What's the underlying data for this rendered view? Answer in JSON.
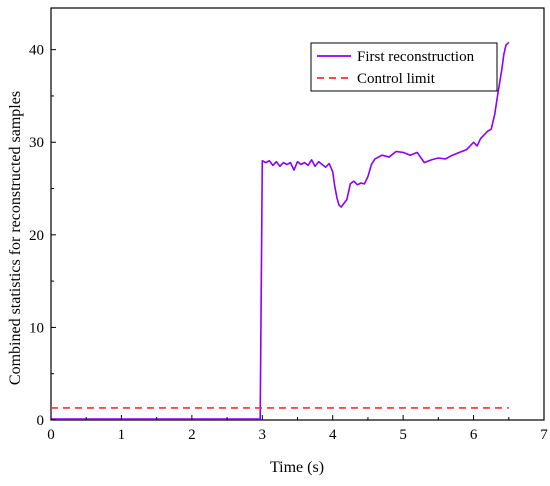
{
  "chart_data": {
    "type": "line",
    "title": "",
    "xlabel": "Time (s)",
    "ylabel": "Combined statistics for reconstructed samples",
    "xlim": [
      0,
      7
    ],
    "ylim": [
      0,
      44.5
    ],
    "xticks": [
      0,
      1,
      2,
      3,
      4,
      5,
      6,
      7
    ],
    "yticks": [
      0,
      10,
      20,
      30,
      40
    ],
    "grid": false,
    "legend_position": "top-right",
    "series": [
      {
        "name": "First reconstruction",
        "color": "#8B00FF",
        "style": "solid",
        "x": [
          0,
          0.5,
          1.0,
          1.5,
          2.0,
          2.5,
          2.95,
          2.97,
          3.0,
          3.05,
          3.1,
          3.15,
          3.2,
          3.25,
          3.3,
          3.35,
          3.4,
          3.45,
          3.5,
          3.55,
          3.6,
          3.65,
          3.7,
          3.75,
          3.8,
          3.85,
          3.9,
          3.95,
          4.0,
          4.03,
          4.06,
          4.09,
          4.12,
          4.15,
          4.2,
          4.25,
          4.3,
          4.35,
          4.4,
          4.45,
          4.5,
          4.55,
          4.6,
          4.7,
          4.8,
          4.9,
          5.0,
          5.1,
          5.2,
          5.3,
          5.4,
          5.5,
          5.6,
          5.7,
          5.8,
          5.9,
          6.0,
          6.05,
          6.1,
          6.15,
          6.2,
          6.25,
          6.3,
          6.35,
          6.4,
          6.43,
          6.46,
          6.5
        ],
        "y": [
          0.1,
          0.1,
          0.1,
          0.1,
          0.1,
          0.1,
          0.1,
          0.1,
          28.0,
          27.8,
          28.0,
          27.5,
          27.9,
          27.4,
          27.8,
          27.6,
          27.8,
          27.0,
          27.9,
          27.6,
          27.8,
          27.5,
          28.1,
          27.4,
          27.9,
          27.6,
          27.3,
          27.7,
          26.8,
          25.2,
          24.0,
          23.2,
          23.0,
          23.3,
          23.8,
          25.5,
          25.8,
          25.4,
          25.6,
          25.5,
          26.3,
          27.6,
          28.2,
          28.6,
          28.4,
          29.0,
          28.9,
          28.6,
          28.9,
          27.8,
          28.1,
          28.3,
          28.2,
          28.6,
          28.9,
          29.2,
          30.0,
          29.6,
          30.4,
          30.8,
          31.2,
          31.4,
          33.0,
          35.5,
          37.8,
          39.5,
          40.5,
          40.8
        ]
      },
      {
        "name": "Control limit",
        "color": "#FF3030",
        "style": "dashed",
        "x": [
          0,
          6.5
        ],
        "y": [
          1.3,
          1.3
        ]
      }
    ]
  }
}
